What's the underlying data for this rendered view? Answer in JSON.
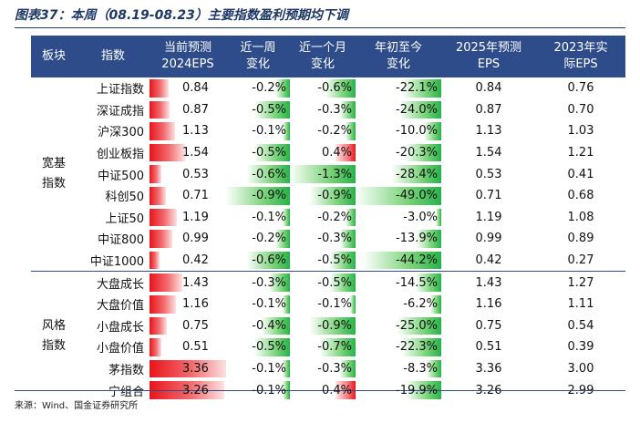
{
  "title": "图表37：本周（08.19-08.23）主要指数盈利预期均下调",
  "headers": {
    "sector": "板块",
    "index": "指数",
    "eps_current_1": "当前预测",
    "eps_current_2": "2024EPS",
    "week_1": "近一周",
    "week_2": "变化",
    "month_1": "近一个月",
    "month_2": "变化",
    "ytd_1": "年初至今",
    "ytd_2": "变化",
    "eps2025_1": "2025年预测",
    "eps2025_2": "EPS",
    "eps2023_1": "2023年实",
    "eps2023_2": "际EPS"
  },
  "groups": [
    {
      "label_1": "宽基",
      "label_2": "指数",
      "rows": [
        {
          "name": "上证指数",
          "eps": "0.84",
          "eps_v": 0.84,
          "week": "-0.2%",
          "week_v": -0.2,
          "month": "-0.6%",
          "month_v": -0.6,
          "ytd": "-22.1%",
          "ytd_v": -22.1,
          "eps2025": "0.84",
          "eps2023": "0.76"
        },
        {
          "name": "深证成指",
          "eps": "0.87",
          "eps_v": 0.87,
          "week": "-0.5%",
          "week_v": -0.5,
          "month": "-0.3%",
          "month_v": -0.3,
          "ytd": "-24.0%",
          "ytd_v": -24.0,
          "eps2025": "0.87",
          "eps2023": "0.70"
        },
        {
          "name": "沪深300",
          "eps": "1.13",
          "eps_v": 1.13,
          "week": "-0.1%",
          "week_v": -0.1,
          "month": "-0.2%",
          "month_v": -0.2,
          "ytd": "-10.0%",
          "ytd_v": -10.0,
          "eps2025": "1.13",
          "eps2023": "1.03"
        },
        {
          "name": "创业板指",
          "eps": "1.54",
          "eps_v": 1.54,
          "week": "-0.5%",
          "week_v": -0.5,
          "month": "0.4%",
          "month_v": 0.4,
          "ytd": "-20.3%",
          "ytd_v": -20.3,
          "eps2025": "1.54",
          "eps2023": "1.21"
        },
        {
          "name": "中证500",
          "eps": "0.53",
          "eps_v": 0.53,
          "week": "-0.6%",
          "week_v": -0.6,
          "month": "-1.3%",
          "month_v": -1.3,
          "ytd": "-28.4%",
          "ytd_v": -28.4,
          "eps2025": "0.53",
          "eps2023": "0.41"
        },
        {
          "name": "科创50",
          "eps": "0.71",
          "eps_v": 0.71,
          "week": "-0.9%",
          "week_v": -0.9,
          "month": "-0.9%",
          "month_v": -0.9,
          "ytd": "-49.0%",
          "ytd_v": -49.0,
          "eps2025": "0.71",
          "eps2023": "0.68"
        },
        {
          "name": "上证50",
          "eps": "1.19",
          "eps_v": 1.19,
          "week": "-0.1%",
          "week_v": -0.1,
          "month": "-0.2%",
          "month_v": -0.2,
          "ytd": "-3.0%",
          "ytd_v": -3.0,
          "eps2025": "1.19",
          "eps2023": "1.08"
        },
        {
          "name": "中证800",
          "eps": "0.99",
          "eps_v": 0.99,
          "week": "-0.2%",
          "week_v": -0.2,
          "month": "-0.3%",
          "month_v": -0.3,
          "ytd": "-13.9%",
          "ytd_v": -13.9,
          "eps2025": "0.99",
          "eps2023": "0.89"
        },
        {
          "name": "中证1000",
          "eps": "0.42",
          "eps_v": 0.42,
          "week": "-0.6%",
          "week_v": -0.6,
          "month": "-0.5%",
          "month_v": -0.5,
          "ytd": "-44.2%",
          "ytd_v": -44.2,
          "eps2025": "0.42",
          "eps2023": "0.27"
        }
      ]
    },
    {
      "label_1": "风格",
      "label_2": "指数",
      "rows": [
        {
          "name": "大盘成长",
          "eps": "1.43",
          "eps_v": 1.43,
          "week": "-0.3%",
          "week_v": -0.3,
          "month": "-0.5%",
          "month_v": -0.5,
          "ytd": "-14.5%",
          "ytd_v": -14.5,
          "eps2025": "1.43",
          "eps2023": "1.27"
        },
        {
          "name": "大盘价值",
          "eps": "1.16",
          "eps_v": 1.16,
          "week": "-0.1%",
          "week_v": -0.1,
          "month": "-0.1%",
          "month_v": -0.1,
          "ytd": "-6.2%",
          "ytd_v": -6.2,
          "eps2025": "1.16",
          "eps2023": "1.11"
        },
        {
          "name": "小盘成长",
          "eps": "0.75",
          "eps_v": 0.75,
          "week": "-0.4%",
          "week_v": -0.4,
          "month": "-0.9%",
          "month_v": -0.9,
          "ytd": "-25.0%",
          "ytd_v": -25.0,
          "eps2025": "0.75",
          "eps2023": "0.54"
        },
        {
          "name": "小盘价值",
          "eps": "0.51",
          "eps_v": 0.51,
          "week": "-0.5%",
          "week_v": -0.5,
          "month": "-0.7%",
          "month_v": -0.7,
          "ytd": "-22.3%",
          "ytd_v": -22.3,
          "eps2025": "0.51",
          "eps2023": "0.39"
        },
        {
          "name": "茅指数",
          "eps": "3.36",
          "eps_v": 3.36,
          "week": "-0.1%",
          "week_v": -0.1,
          "month": "-0.3%",
          "month_v": -0.3,
          "ytd": "-8.3%",
          "ytd_v": -8.3,
          "eps2025": "3.36",
          "eps2023": "3.00"
        },
        {
          "name": "宁组合",
          "eps": "3.26",
          "eps_v": 3.26,
          "week": "-0.1%",
          "week_v": -0.1,
          "month": "0.4%",
          "month_v": 0.4,
          "ytd": "-19.9%",
          "ytd_v": -19.9,
          "eps2025": "3.26",
          "eps2023": "2.99"
        }
      ]
    }
  ],
  "source": "来源：Wind、国金证券研究所"
}
